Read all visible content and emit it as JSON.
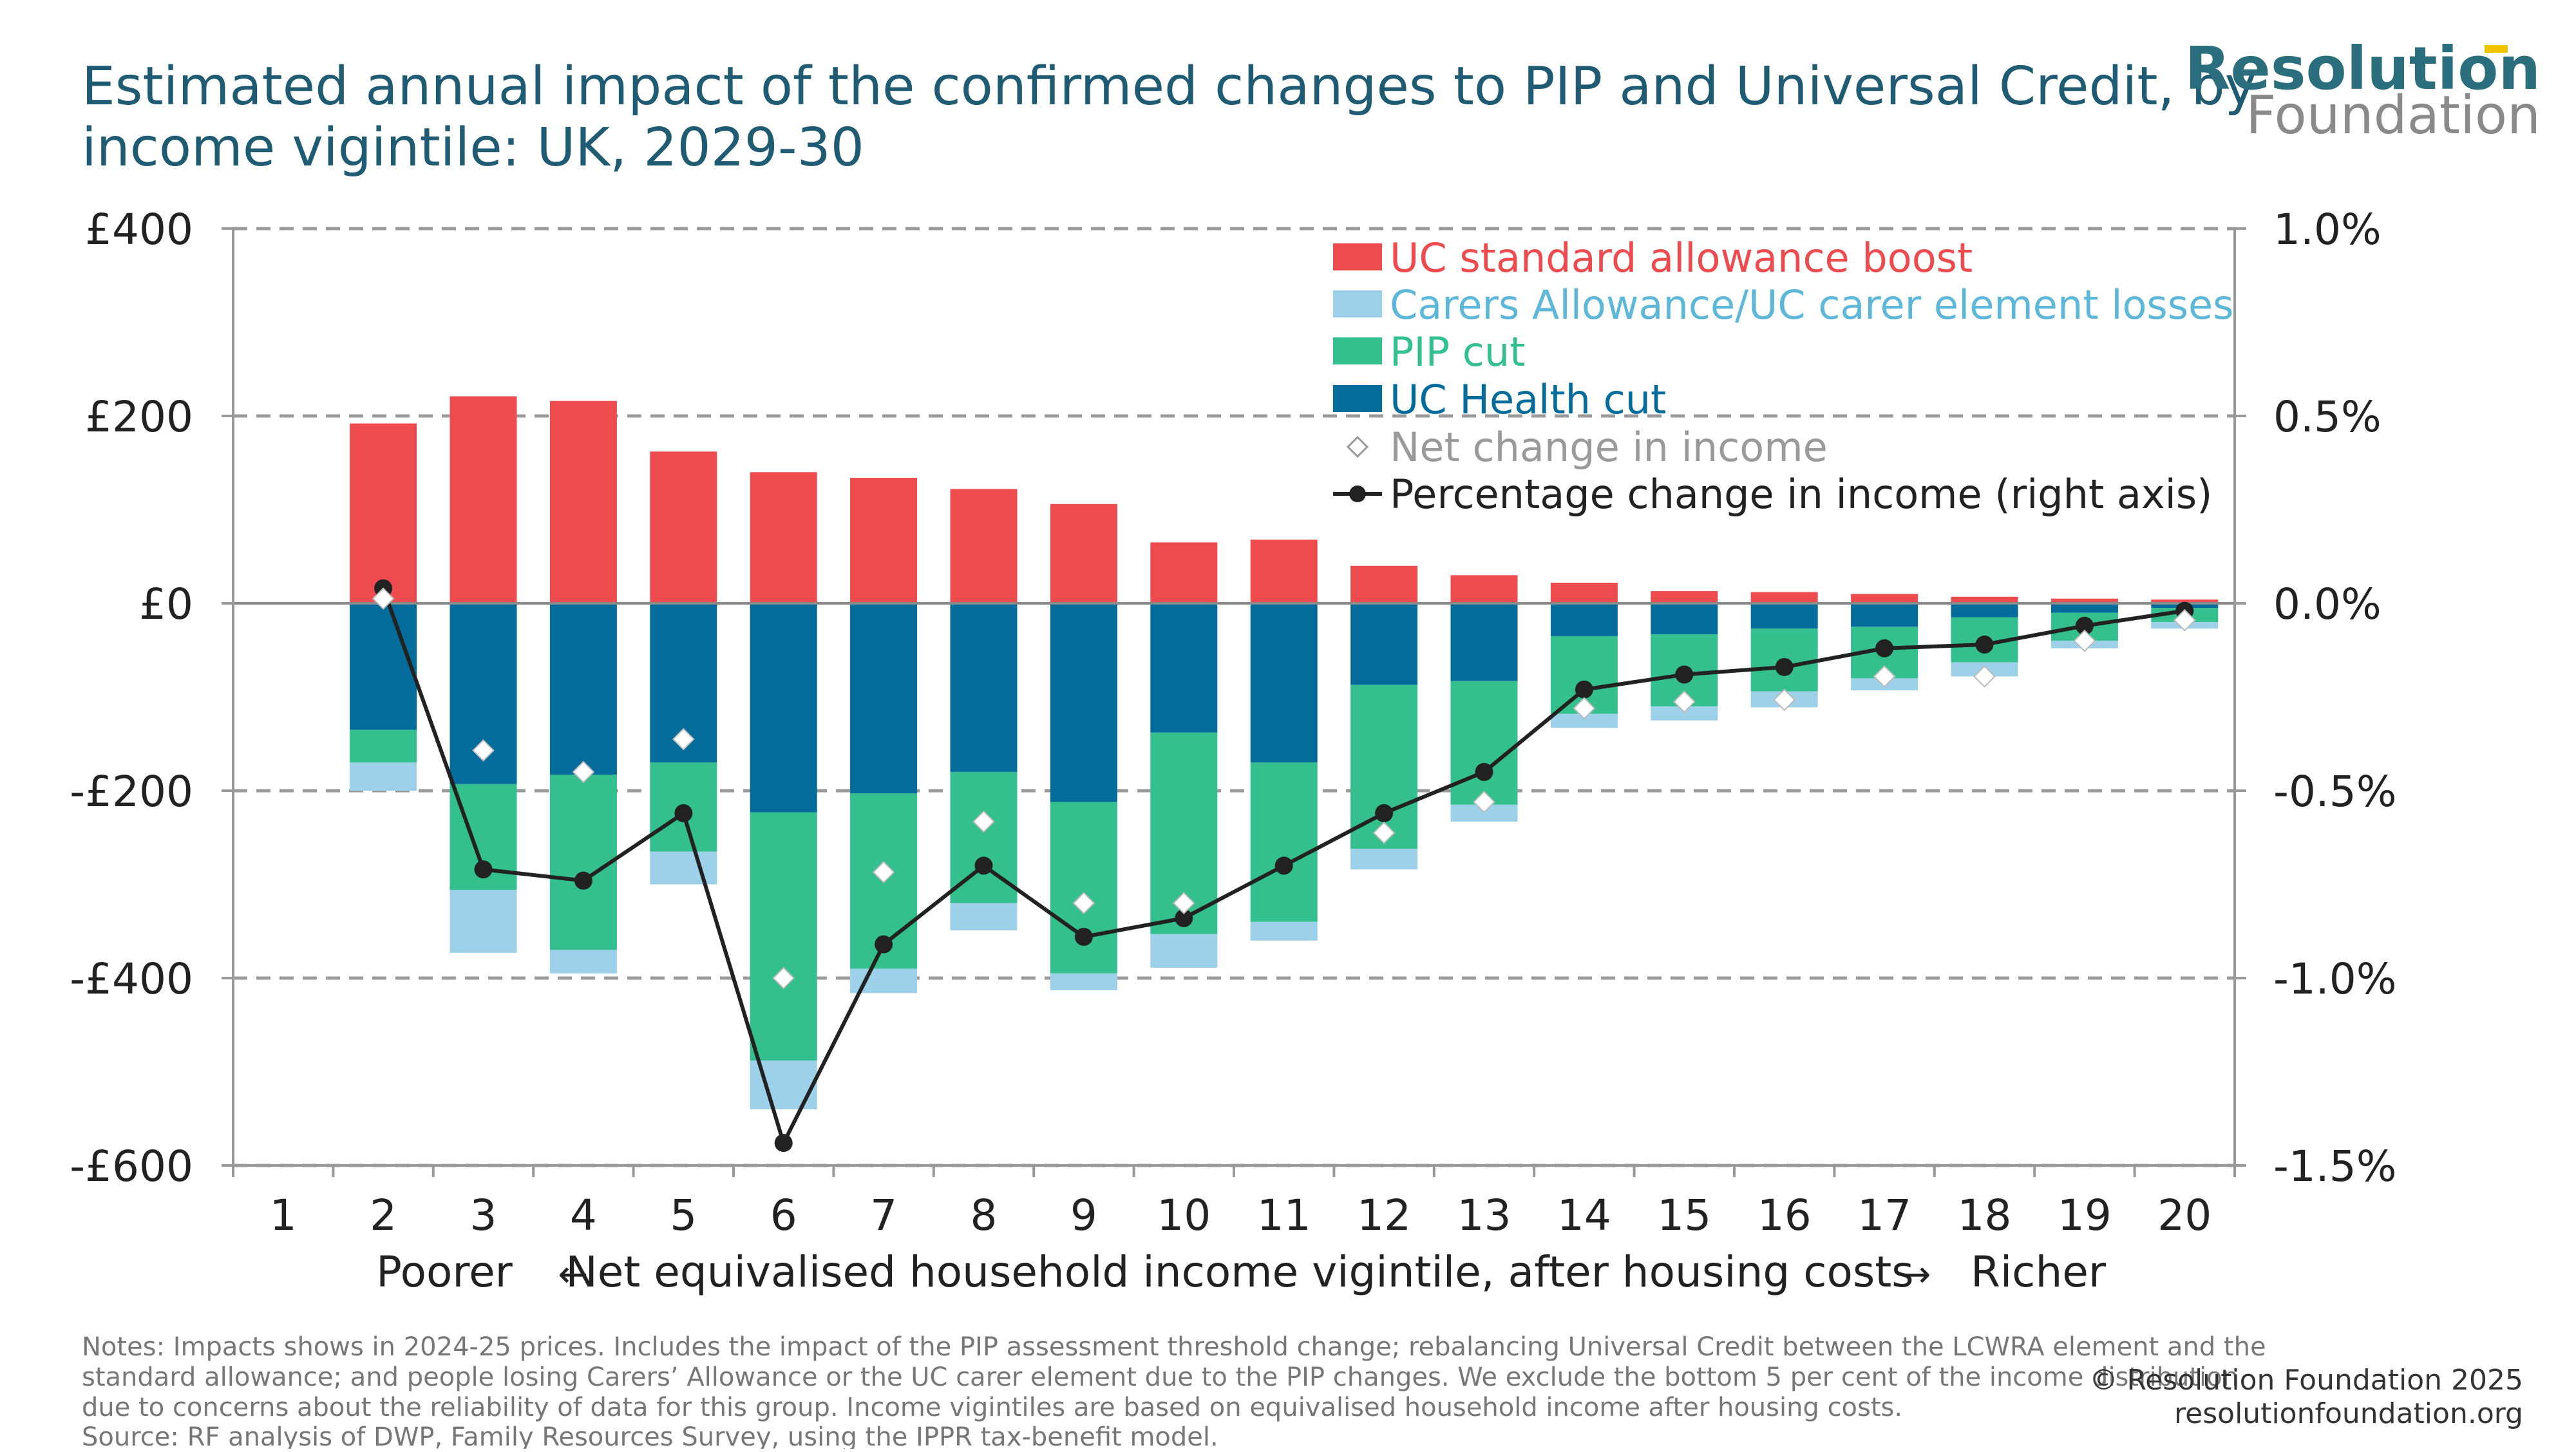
{
  "header": {
    "title_line1": "Estimated annual impact of the confirmed changes to PIP and Universal Credit, by",
    "title_line2": "income vigintile: UK, 2029-30",
    "logo_line1": "Resolution",
    "logo_line2": "Foundation"
  },
  "colors": {
    "title": "#1f5c73",
    "uc_boost": "#ee4b4f",
    "carers": "#9dd1ea",
    "pip": "#33bf8e",
    "uc_health": "#036c9b",
    "net": "#ffffff",
    "pct_line": "#222222",
    "grid": "#9a9a9a",
    "logo_teal": "#2b6f7f",
    "logo_gray": "#8a8a8a",
    "logo_accent": "#f2c100"
  },
  "footer": {
    "notes_line1": "Notes: Impacts shows in 2024-25 prices. Includes the impact of the PIP assessment threshold change; rebalancing Universal Credit between the LCWRA element and the",
    "notes_line2": "standard allowance; and people losing Carers’ Allowance or the UC carer element due to the PIP changes. We exclude the bottom 5 per cent of the income distribution",
    "notes_line3": "due to concerns about the reliability of data for this group. Income vigintiles are based on equivalised household income after housing costs.",
    "source": "Source: RF analysis of DWP, Family Resources Survey, using the IPPR tax-benefit model.",
    "copyright": "© Resolution Foundation 2025",
    "website": "resolutionfoundation.org"
  },
  "chart_data": {
    "type": "bar",
    "subtype": "stacked bar with markers and line (dual axis)",
    "categories": [
      "1",
      "2",
      "3",
      "4",
      "5",
      "6",
      "7",
      "8",
      "9",
      "10",
      "11",
      "12",
      "13",
      "14",
      "15",
      "16",
      "17",
      "18",
      "19",
      "20"
    ],
    "xlabel": "Net equivalised household income vigintile, after housing costs",
    "xlabel_left": "Poorer",
    "xlabel_right": "Richer",
    "xlabel_left_arrow": "←",
    "xlabel_right_arrow": "→",
    "ylabel": "",
    "ylim": [
      -600,
      400
    ],
    "yticks": [
      400,
      200,
      0,
      -200,
      -400,
      -600
    ],
    "ytick_labels": [
      "£400",
      "£200",
      "£0",
      "-£200",
      "-£400",
      "-£600"
    ],
    "y2lim": [
      -1.5,
      1.0
    ],
    "y2ticks": [
      1.0,
      0.5,
      0.0,
      -0.5,
      -1.0,
      -1.5
    ],
    "y2tick_labels": [
      "1.0%",
      "0.5%",
      "0.0%",
      "-0.5%",
      "-1.0%",
      "-1.5%"
    ],
    "grid": true,
    "legend_position": "top-right",
    "series": [
      {
        "name": "UC standard allowance boost",
        "kind": "bar",
        "values": [
          null,
          192,
          221,
          216,
          162,
          140,
          134,
          122,
          106,
          65,
          68,
          40,
          30,
          22,
          13,
          12,
          10,
          7,
          5,
          4
        ]
      },
      {
        "name": "Carers Allowance/UC carer element losses",
        "kind": "bar",
        "values": [
          null,
          -30,
          -67,
          -25,
          -35,
          -52,
          -26,
          -29,
          -18,
          -36,
          -20,
          -22,
          -18,
          -15,
          -15,
          -17,
          -13,
          -15,
          -8,
          -7
        ]
      },
      {
        "name": "PIP cut",
        "kind": "bar",
        "values": [
          null,
          -35,
          -113,
          -187,
          -95,
          -265,
          -187,
          -140,
          -183,
          -215,
          -170,
          -175,
          -132,
          -83,
          -77,
          -67,
          -55,
          -48,
          -30,
          -15
        ]
      },
      {
        "name": "UC Health cut",
        "kind": "bar",
        "values": [
          null,
          -135,
          -193,
          -183,
          -170,
          -223,
          -203,
          -180,
          -212,
          -138,
          -170,
          -87,
          -83,
          -35,
          -33,
          -27,
          -25,
          -15,
          -10,
          -5
        ]
      },
      {
        "name": "Net change in income",
        "kind": "marker",
        "values": [
          null,
          5,
          -157,
          -180,
          -145,
          -400,
          -287,
          -233,
          -320,
          -320,
          null,
          -245,
          -212,
          -112,
          -105,
          -103,
          -78,
          -78,
          -40,
          -18
        ]
      },
      {
        "name": "Percentage change in income (right axis)",
        "kind": "line",
        "axis": "right",
        "values": [
          null,
          0.04,
          -0.71,
          -0.74,
          -0.56,
          -1.44,
          -0.91,
          -0.7,
          -0.89,
          -0.84,
          -0.7,
          -0.56,
          -0.45,
          -0.23,
          -0.19,
          -0.17,
          -0.12,
          -0.11,
          -0.06,
          -0.02
        ]
      }
    ]
  }
}
